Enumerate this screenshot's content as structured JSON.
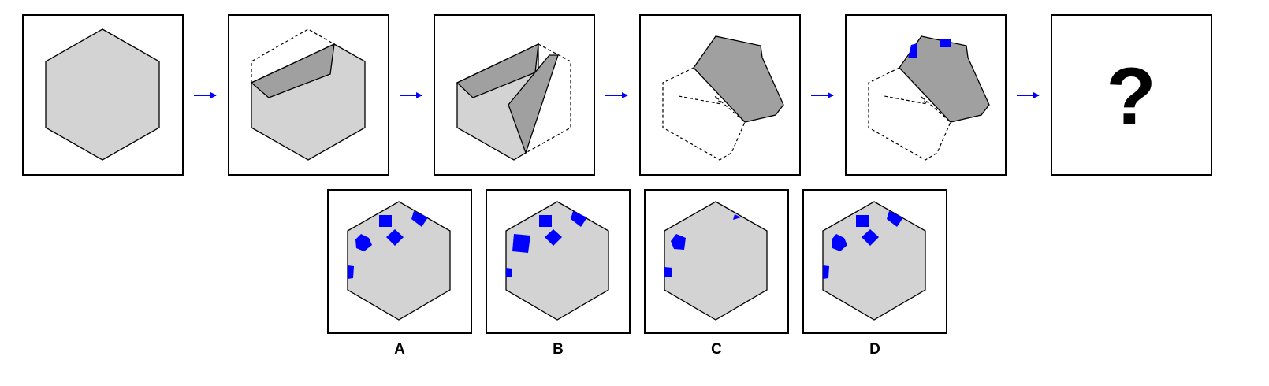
{
  "puzzle": {
    "arrow_color": "#0000ff",
    "paper_color": "#d3d3d3",
    "fold_shade_color": "#a0a0a0",
    "hole_color": "#0000ff",
    "sequence": [
      {
        "step": "flat-hexagon"
      },
      {
        "step": "fold-1"
      },
      {
        "step": "fold-2"
      },
      {
        "step": "fold-3"
      },
      {
        "step": "punch-holes"
      },
      {
        "step": "unknown",
        "text": "?"
      }
    ],
    "options": [
      {
        "label": "A"
      },
      {
        "label": "B"
      },
      {
        "label": "C"
      },
      {
        "label": "D"
      }
    ]
  }
}
